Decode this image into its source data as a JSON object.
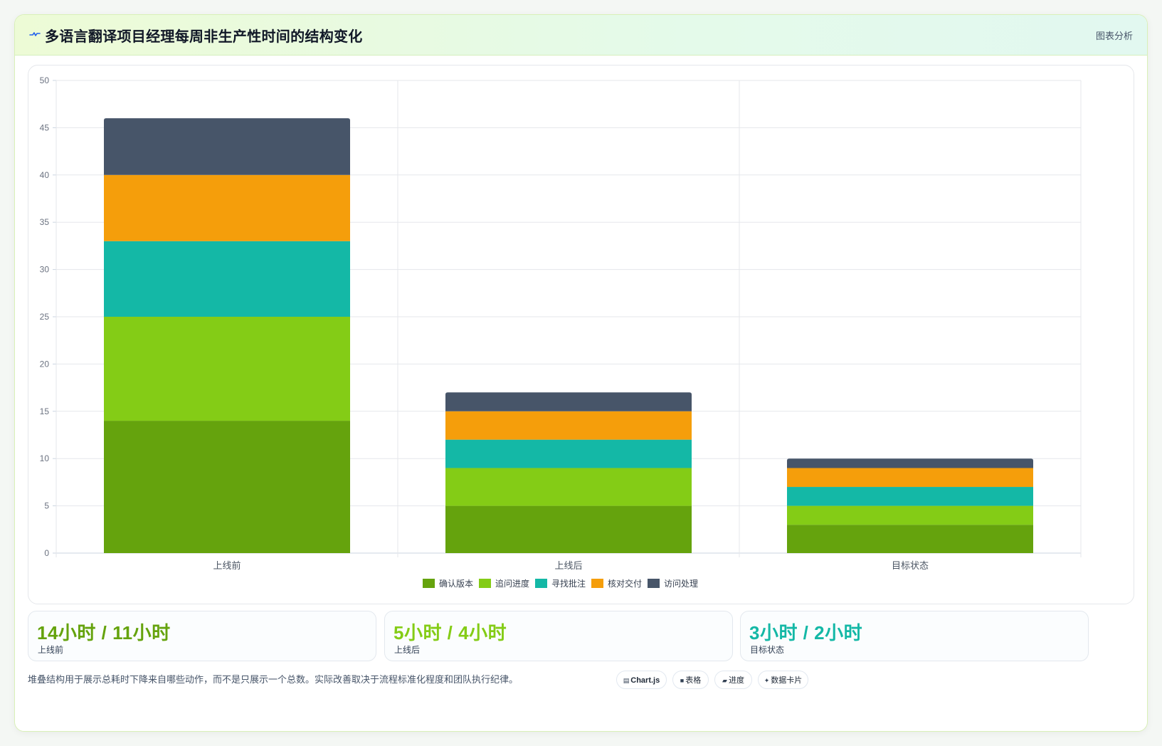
{
  "header": {
    "title": "多语言翻译项目经理每周非生产性时间的结构变化",
    "tag": "图表分析"
  },
  "colors": {
    "确认版本": "#65a30d",
    "追问进度": "#84cc16",
    "寻找批注": "#14b8a6",
    "核对交付": "#f59e0b",
    "访问处理": "#475569"
  },
  "chart_data": {
    "type": "bar",
    "stacked": true,
    "categories": [
      "上线前",
      "上线后",
      "目标状态"
    ],
    "series": [
      {
        "name": "确认版本",
        "values": [
          14,
          5,
          3
        ],
        "color": "#65a30d"
      },
      {
        "name": "追问进度",
        "values": [
          11,
          4,
          2
        ],
        "color": "#84cc16"
      },
      {
        "name": "寻找批注",
        "values": [
          8,
          3,
          2
        ],
        "color": "#14b8a6"
      },
      {
        "name": "核对交付",
        "values": [
          7,
          3,
          2
        ],
        "color": "#f59e0b"
      },
      {
        "name": "访问处理",
        "values": [
          6,
          2,
          1
        ],
        "color": "#475569"
      }
    ],
    "ylim": [
      0,
      50
    ],
    "yticks": [
      0,
      5,
      10,
      15,
      20,
      25,
      30,
      35,
      40,
      45,
      50
    ],
    "grid": true,
    "legend": "bottom-center",
    "title": "",
    "xlabel": "",
    "ylabel": ""
  },
  "stats": [
    {
      "value": "14小时 / 11小时",
      "label": "上线前",
      "color": "#65a30d"
    },
    {
      "value": "5小时 / 4小时",
      "label": "上线后",
      "color": "#84cc16"
    },
    {
      "value": "3小时 / 2小时",
      "label": "目标状态",
      "color": "#14b8a6"
    }
  ],
  "footnote": "堆叠结构用于展示总耗时下降来自哪些动作，而不是只展示一个总数。实际改善取决于流程标准化程度和团队执行纪律。",
  "chips": [
    {
      "icon": "▤",
      "label": "Chart.js",
      "icon_name": "chart-icon"
    },
    {
      "icon": "■",
      "label": "表格",
      "icon_name": "table-icon"
    },
    {
      "icon": "▰",
      "label": "进度",
      "icon_name": "progress-icon"
    },
    {
      "icon": "✦",
      "label": "数据卡片",
      "icon_name": "sparkle-icon"
    }
  ]
}
